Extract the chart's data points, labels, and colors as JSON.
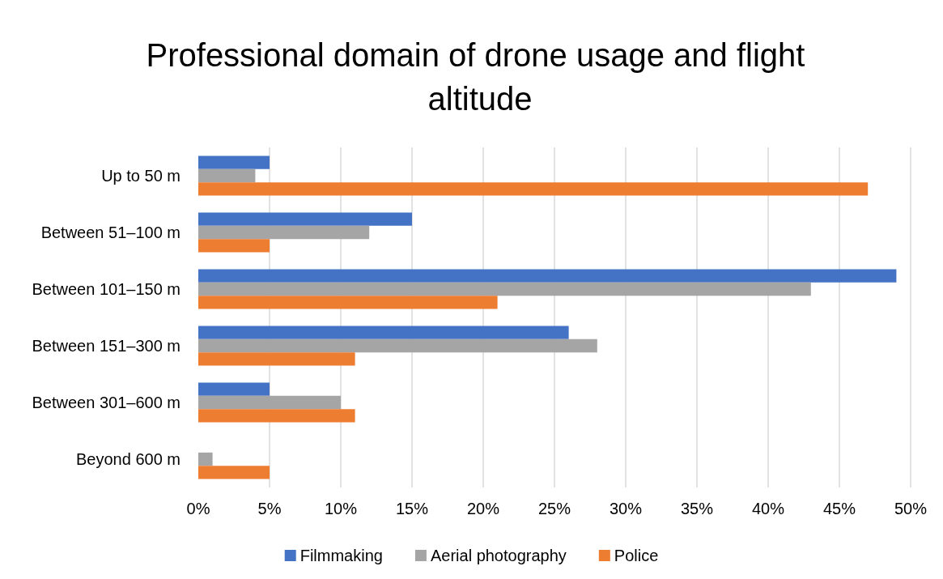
{
  "chart_data": {
    "type": "bar",
    "orientation": "horizontal",
    "title": "Professional domain of drone usage and flight altitude",
    "categories": [
      "Up to 50 m",
      "Between 51–100 m",
      "Between 101–150 m",
      "Between 151–300 m",
      "Between 301–600 m",
      "Beyond 600 m"
    ],
    "series": [
      {
        "name": "Filmmaking",
        "color": "#4472c4",
        "values": [
          5,
          15,
          49,
          26,
          5,
          0
        ]
      },
      {
        "name": "Aerial photography",
        "color": "#a5a5a5",
        "values": [
          4,
          12,
          43,
          28,
          10,
          1
        ]
      },
      {
        "name": "Police",
        "color": "#ed7d31",
        "values": [
          47,
          5,
          21,
          11,
          11,
          5
        ]
      }
    ],
    "xlim": [
      0,
      50
    ],
    "xticks": [
      {
        "value": 0,
        "label": "0%"
      },
      {
        "value": 5,
        "label": "5%"
      },
      {
        "value": 10,
        "label": "10%"
      },
      {
        "value": 15,
        "label": "15%"
      },
      {
        "value": 20,
        "label": "20%"
      },
      {
        "value": 25,
        "label": "25%"
      },
      {
        "value": 30,
        "label": "30%"
      },
      {
        "value": 35,
        "label": "35%"
      },
      {
        "value": 40,
        "label": "40%"
      },
      {
        "value": 45,
        "label": "45%"
      },
      {
        "value": 50,
        "label": "50%"
      }
    ],
    "grid": "x",
    "legend": "bottom"
  }
}
